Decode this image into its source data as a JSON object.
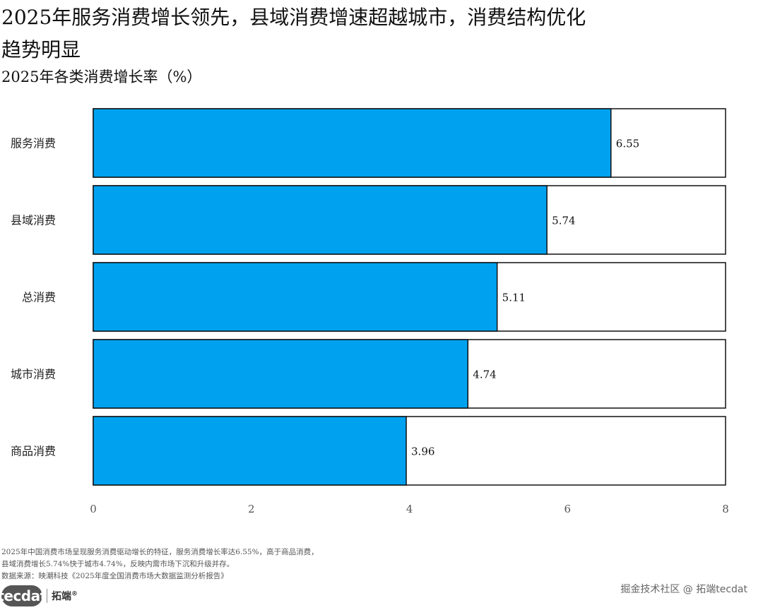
{
  "title": "2025年服务消费增长领先，县域消费增速超越城市，消费结构优化趋势明显",
  "subtitle": "2025年各类消费增长率（%）",
  "note_lines": [
    "2025年中国消费市场呈现服务消费驱动增长的特征，服务消费增长率达6.55%，高于商品消费，",
    "县域消费增长5.74%快于城市4.74%，反映内需市场下沉和升级并存。",
    "数据来源：映潮科技《2025年度全国消费市场大数据监测分析报告》"
  ],
  "logo": {
    "brand": "tecdat",
    "cn": "拓端",
    "reg": "®"
  },
  "watermark": "掘金技术社区 @ 拓端tecdat",
  "chart_data": {
    "type": "bar",
    "orientation": "horizontal",
    "categories": [
      "服务消费",
      "县域消费",
      "总消费",
      "城市消费",
      "商品消费"
    ],
    "values": [
      6.55,
      5.74,
      5.11,
      4.74,
      3.96
    ],
    "value_labels": [
      "6.55",
      "5.74",
      "5.11",
      "4.74",
      "3.96"
    ],
    "xlim": [
      0,
      8
    ],
    "xticks": [
      0,
      2,
      4,
      6,
      8
    ],
    "bar_color": "#00A2F0",
    "background_bar_color": "#ffffff",
    "grid": false,
    "title": "2025年各类消费增长率（%）"
  }
}
